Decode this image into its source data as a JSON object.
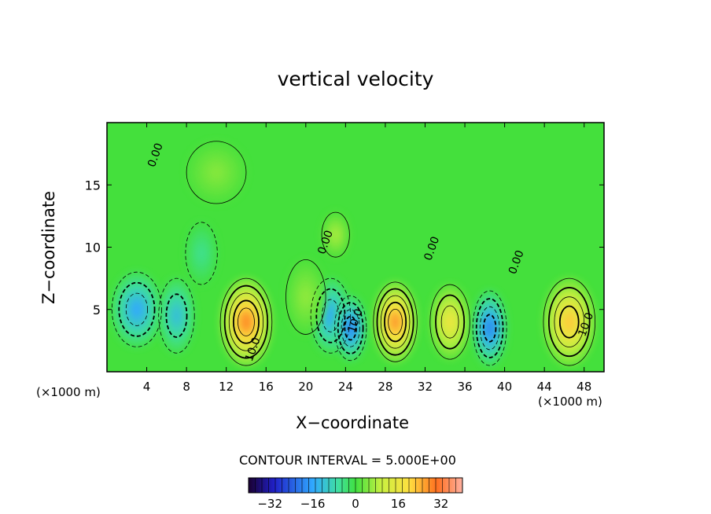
{
  "chart_data": {
    "type": "heatmap",
    "title": "vertical velocity",
    "xlabel": "X−coordinate",
    "ylabel": "Z−coordinate",
    "x_unit": "(×1000 m)",
    "xlim": [
      0,
      50
    ],
    "ylim": [
      0,
      20
    ],
    "xticks": [
      4,
      8,
      12,
      16,
      20,
      24,
      28,
      32,
      36,
      40,
      44,
      48
    ],
    "yticks": [
      5,
      10,
      15
    ],
    "contour_interval_text": "CONTOUR INTERVAL = 5.000E+00",
    "contour_labels": [
      {
        "text": "0.00",
        "x": 5.2,
        "z": 17.3
      },
      {
        "text": "0.00",
        "x": 22.3,
        "z": 10.3
      },
      {
        "text": "0.00",
        "x": 33.0,
        "z": 9.8
      },
      {
        "text": "0.00",
        "x": 41.5,
        "z": 8.7
      },
      {
        "text": "10.0",
        "x": 15.0,
        "z": 1.7
      },
      {
        "text": "10.0",
        "x": 25.3,
        "z": 4.0
      },
      {
        "text": "10.0",
        "x": 48.5,
        "z": 3.7
      }
    ],
    "colorbar": {
      "min": -40,
      "max": 40,
      "ticks": [
        "−32",
        "−16",
        "0",
        "16",
        "32"
      ],
      "tick_values": [
        -32,
        -16,
        0,
        16,
        32
      ]
    },
    "cells": [
      {
        "x": 3.0,
        "z": 5.0,
        "value": -16,
        "sx": 2.5,
        "sz": 3.0
      },
      {
        "x": 7.0,
        "z": 4.5,
        "value": -13,
        "sx": 1.8,
        "sz": 3.0
      },
      {
        "x": 9.5,
        "z": 9.5,
        "value": -6,
        "sx": 1.6,
        "sz": 2.5
      },
      {
        "x": 14.0,
        "z": 4.0,
        "value": 28,
        "sx": 2.6,
        "sz": 3.5
      },
      {
        "x": 22.5,
        "z": 4.5,
        "value": -16,
        "sx": 2.0,
        "sz": 3.0
      },
      {
        "x": 24.5,
        "z": 3.5,
        "value": -20,
        "sx": 1.6,
        "sz": 2.6
      },
      {
        "x": 23.0,
        "z": 11.0,
        "value": 8,
        "sx": 1.4,
        "sz": 1.8
      },
      {
        "x": 29.0,
        "z": 4.0,
        "value": 27,
        "sx": 2.2,
        "sz": 3.2
      },
      {
        "x": 34.5,
        "z": 4.0,
        "value": 17,
        "sx": 2.0,
        "sz": 3.0
      },
      {
        "x": 38.5,
        "z": 3.5,
        "value": -20,
        "sx": 1.7,
        "sz": 3.0
      },
      {
        "x": 46.5,
        "z": 4.0,
        "value": 22,
        "sx": 2.6,
        "sz": 3.5
      },
      {
        "x": 11.0,
        "z": 16.0,
        "value": 5,
        "sx": 3.0,
        "sz": 2.5
      },
      {
        "x": 20.0,
        "z": 6.0,
        "value": 6,
        "sx": 2.0,
        "sz": 3.0
      }
    ]
  }
}
